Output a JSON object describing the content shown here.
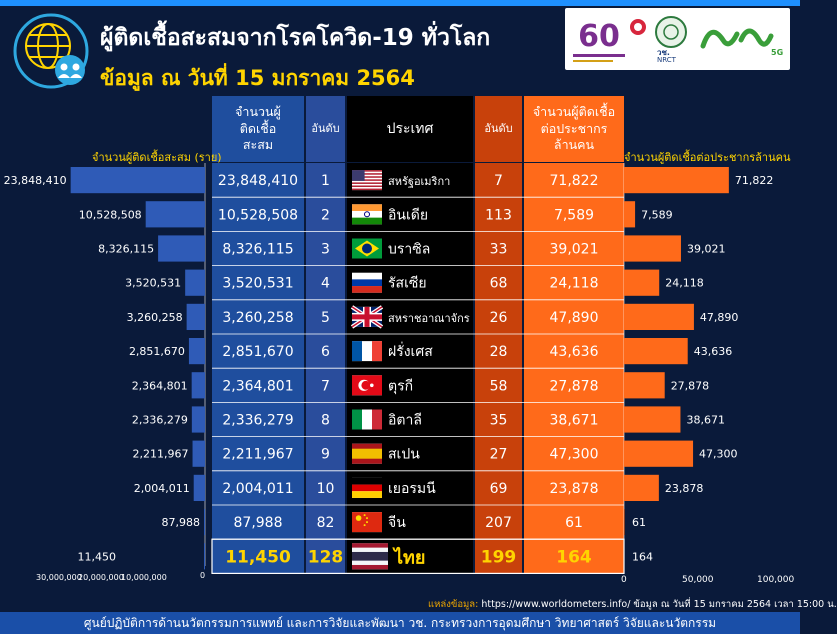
{
  "title": "ผู้ติดเชื้อสะสมจากโรคโควิด-19 ทั่วโลก",
  "subtitle": "ข้อมูล ณ วันที่ 15 มกราคม 2564",
  "headers": {
    "cases": "จำนวนผู้ติดเชื้อสะสม",
    "rank": "อันดับ",
    "country": "ประเทศ",
    "rank2": "อันดับ",
    "per_million": "จำนวนผู้ติดเชื้อต่อประชากรล้านคน"
  },
  "left_axis_title": "จำนวนผู้ติดเชื้อสะสม (ราย)",
  "right_axis_title": "จำนวนผู้ติดเชื้อต่อประชากรล้านคน",
  "left_ticks": [
    "30,000,000",
    "20,000,000",
    "10,000,000",
    "0"
  ],
  "right_ticks": [
    "0",
    "50,000",
    "100,000"
  ],
  "chart_data": {
    "type": "bar",
    "categories": [
      "สหรัฐอเมริกา",
      "อินเดีย",
      "บราซิล",
      "รัสเซีย",
      "สหราชอาณาจักร",
      "ฝรั่งเศส",
      "ตุรกี",
      "อิตาลี",
      "สเปน",
      "เยอรมนี",
      "จีน",
      "ไทย"
    ],
    "series": [
      {
        "name": "จำนวนผู้ติดเชื้อสะสม (ราย)",
        "values": [
          23848410,
          10528508,
          8326115,
          3520531,
          3260258,
          2851670,
          2364801,
          2336279,
          2211967,
          2004011,
          87988,
          11450
        ],
        "labels": [
          "23,848,410",
          "10,528,508",
          "8,326,115",
          "3,520,531",
          "3,260,258",
          "2,851,670",
          "2,364,801",
          "2,336,279",
          "2,211,967",
          "2,004,011",
          "87,988",
          "11,450"
        ],
        "ranks": [
          "1",
          "2",
          "3",
          "4",
          "5",
          "6",
          "7",
          "8",
          "9",
          "10",
          "82",
          "128"
        ],
        "xlim": [
          0,
          30000000
        ]
      },
      {
        "name": "จำนวนผู้ติดเชื้อต่อประชากรล้านคน",
        "values": [
          71822,
          7589,
          39021,
          24118,
          47890,
          43636,
          27878,
          38671,
          47300,
          23878,
          61,
          164
        ],
        "labels": [
          "71,822",
          "7,589",
          "39,021",
          "24,118",
          "47,890",
          "43,636",
          "27,878",
          "38,671",
          "47,300",
          "23,878",
          "61",
          "164"
        ],
        "ranks": [
          "7",
          "113",
          "33",
          "68",
          "26",
          "28",
          "58",
          "35",
          "27",
          "69",
          "207",
          "199"
        ],
        "xlim": [
          0,
          100000
        ]
      }
    ]
  },
  "flags": [
    {
      "icon": "flag-usa-icon",
      "colors": [
        "#b22234",
        "#ffffff",
        "#3c3b6e"
      ]
    },
    {
      "icon": "flag-india-icon",
      "colors": [
        "#ff9933",
        "#ffffff",
        "#138808"
      ]
    },
    {
      "icon": "flag-brazil-icon",
      "colors": [
        "#009c3b",
        "#ffdf00",
        "#002776"
      ]
    },
    {
      "icon": "flag-russia-icon",
      "colors": [
        "#ffffff",
        "#0039a6",
        "#d52b1e"
      ]
    },
    {
      "icon": "flag-uk-icon",
      "colors": [
        "#012169",
        "#ffffff",
        "#c8102e"
      ]
    },
    {
      "icon": "flag-france-icon",
      "colors": [
        "#0055a4",
        "#ffffff",
        "#ef4135"
      ]
    },
    {
      "icon": "flag-turkey-icon",
      "colors": [
        "#e30a17",
        "#ffffff",
        "#e30a17"
      ]
    },
    {
      "icon": "flag-italy-icon",
      "colors": [
        "#009246",
        "#ffffff",
        "#ce2b37"
      ]
    },
    {
      "icon": "flag-spain-icon",
      "colors": [
        "#aa151b",
        "#f1bf00",
        "#aa151b"
      ]
    },
    {
      "icon": "flag-germany-icon",
      "colors": [
        "#000000",
        "#dd0000",
        "#ffce00"
      ]
    },
    {
      "icon": "flag-china-icon",
      "colors": [
        "#de2910",
        "#de2910",
        "#ffde00"
      ]
    },
    {
      "icon": "flag-thailand-icon",
      "colors": [
        "#a51931",
        "#f4f5f8",
        "#2d2a4a"
      ]
    }
  ],
  "logos": {
    "nrct": "วช.",
    "nrct_en": "NRCT",
    "fiveg": "5G"
  },
  "source": {
    "label": "แหล่งข้อมูล:",
    "text": "https://www.worldometers.info/ ข้อมูล ณ วันที่ 15 มกราคม 2564 เวลา 15:00 น."
  },
  "footer": "ศูนย์ปฏิบัติการด้านนวัตกรรมการแพทย์ และการวิจัยและพัฒนา วช. กระทรวงการอุดมศึกษา วิทยาศาสตร์ วิจัยและนวัตกรรม",
  "colors": {
    "background": "#0a1a3a",
    "left_bar": "#2f5bb7",
    "right_bar": "#ff6a1a",
    "highlight": "#ffd400",
    "cases_col": "#1f4e9e",
    "rank_col": "#2a4d9c",
    "country_col": "#000000",
    "rank2_col": "#c8410b",
    "permil_col": "#ff6a1a"
  }
}
